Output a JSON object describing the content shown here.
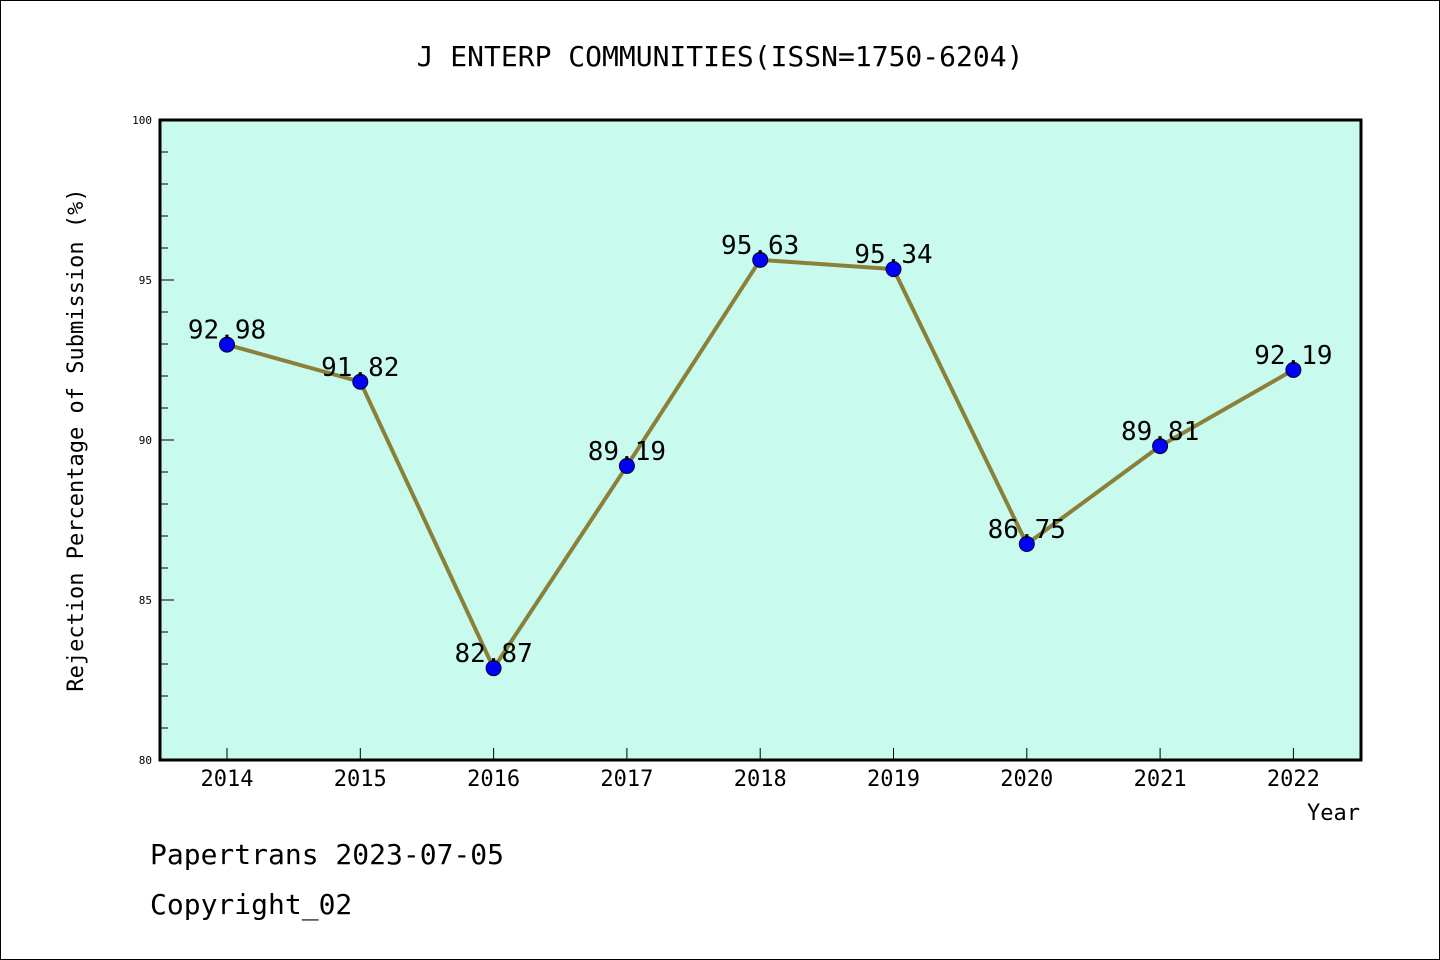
{
  "chart_data": {
    "type": "line",
    "title": "J ENTERP COMMUNITIES(ISSN=1750-6204)",
    "xlabel": "Year",
    "ylabel": "Rejection Percentage of Submission (%)",
    "categories": [
      "2014",
      "2015",
      "2016",
      "2017",
      "2018",
      "2019",
      "2020",
      "2021",
      "2022"
    ],
    "series": [
      {
        "values": [
          92.98,
          91.82,
          82.87,
          89.19,
          95.63,
          95.34,
          86.75,
          89.81,
          92.19
        ],
        "data_labels": [
          "92.98",
          "91.82",
          "82.87",
          "89.19",
          "95.63",
          "95.34",
          "86.75",
          "89.81",
          "92.19"
        ]
      }
    ],
    "ylim": [
      80,
      100
    ],
    "yticks": [
      "80",
      "85",
      "90",
      "95",
      "100"
    ],
    "yticks_values": [
      80,
      85,
      90,
      95,
      100
    ],
    "grid": false,
    "colors": {
      "plot_background": "#c8fbee",
      "line": "#8b8039",
      "marker": "#0000ff"
    }
  },
  "footer": {
    "line1": "Papertrans 2023-07-05",
    "line2": "Copyright_02"
  }
}
